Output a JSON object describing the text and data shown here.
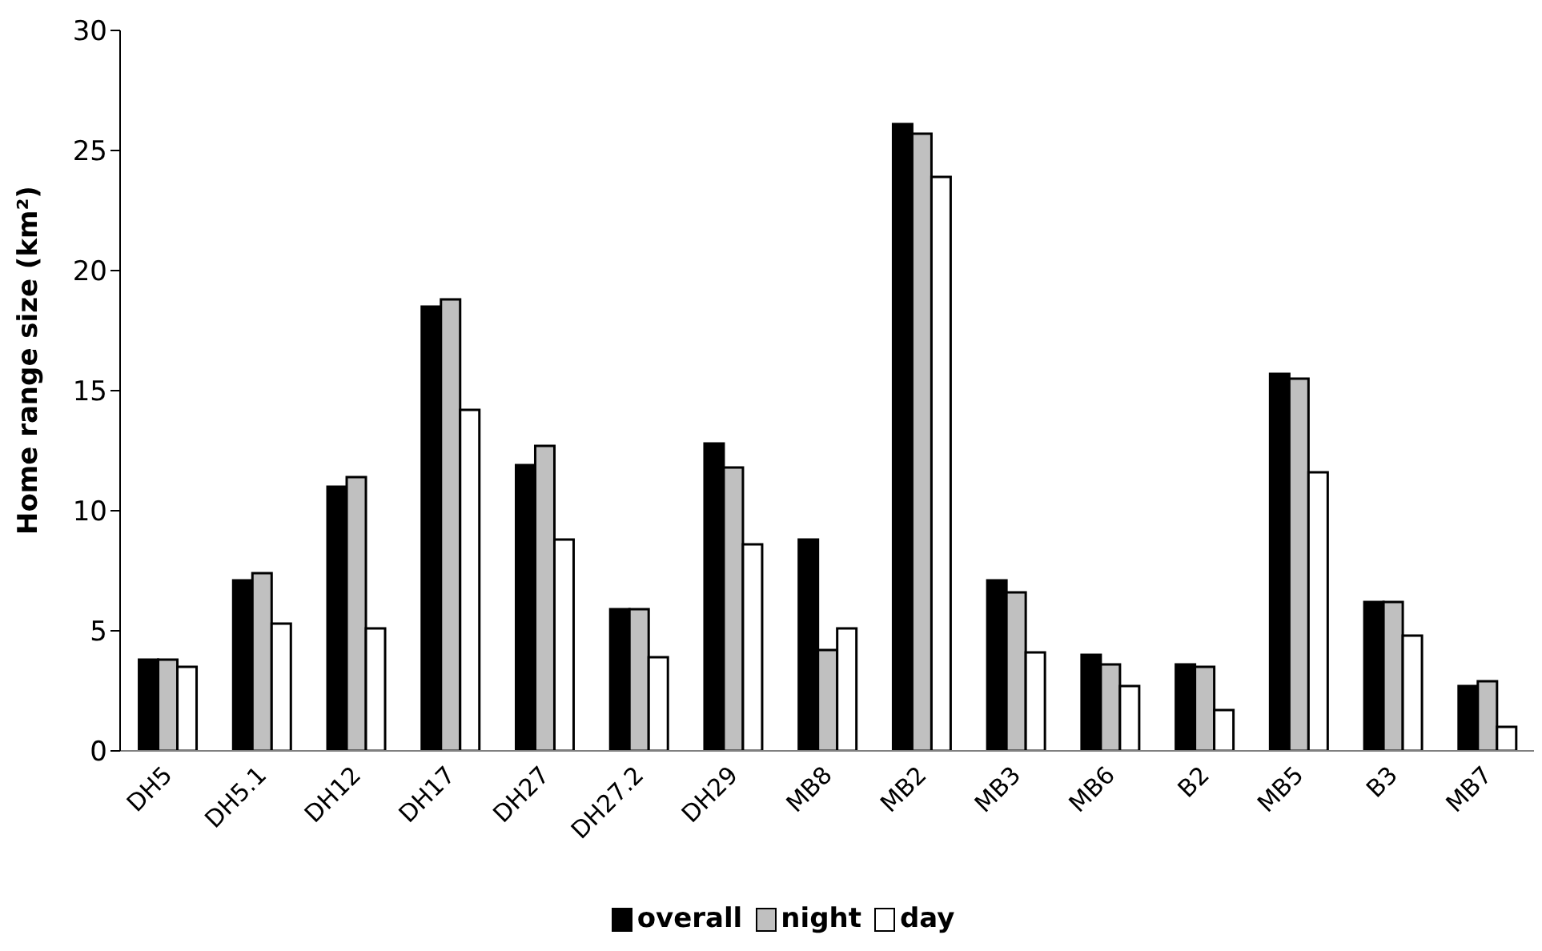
{
  "chart_data": {
    "type": "bar",
    "ylabel": "Home range size (km²)",
    "categories": [
      "DH5",
      "DH5.1",
      "DH12",
      "DH17",
      "DH27",
      "DH27.2",
      "DH29",
      "MB8",
      "MB2",
      "MB3",
      "MB6",
      "B2",
      "MB5",
      "B3",
      "MB7"
    ],
    "series": [
      {
        "name": "overall",
        "color": "#000000",
        "values": [
          3.8,
          7.1,
          11.0,
          18.5,
          11.9,
          5.9,
          12.8,
          8.8,
          26.1,
          7.1,
          4.0,
          3.6,
          15.7,
          6.2,
          2.7
        ]
      },
      {
        "name": "night",
        "color": "#c0c0c0",
        "values": [
          3.8,
          7.4,
          11.4,
          18.8,
          12.7,
          5.9,
          11.8,
          4.2,
          25.7,
          6.6,
          3.6,
          3.5,
          15.5,
          6.2,
          2.9
        ]
      },
      {
        "name": "day",
        "color": "#ffffff",
        "values": [
          3.5,
          5.3,
          5.1,
          14.2,
          8.8,
          3.9,
          8.6,
          5.1,
          23.9,
          4.1,
          2.7,
          1.7,
          11.6,
          4.8,
          1.0
        ]
      }
    ],
    "ylim": [
      0,
      30
    ],
    "yticks": [
      0,
      5,
      10,
      15,
      20,
      25,
      30
    ],
    "grid": false,
    "legend": "bottom"
  }
}
